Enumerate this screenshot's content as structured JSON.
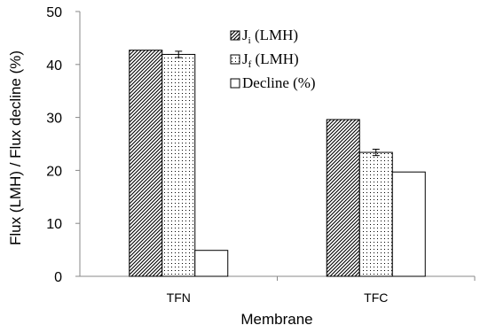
{
  "chart_data": {
    "type": "bar",
    "title": "",
    "xlabel": "Membrane",
    "ylabel": "Flux (LMH) / Flux decline (%)",
    "ylim": [
      0,
      50
    ],
    "yticks": [
      0,
      10,
      20,
      30,
      40,
      50
    ],
    "categories": [
      "TFN",
      "TFC"
    ],
    "series": [
      {
        "name_main": "J",
        "name_sub": "i",
        "name_rest": " (LMH)",
        "values": [
          42.7,
          29.6
        ],
        "errors": [
          0,
          0
        ],
        "pattern": "diagonal-hatch"
      },
      {
        "name_main": "J",
        "name_sub": "f",
        "name_rest": " (LMH)",
        "values": [
          41.9,
          23.4
        ],
        "errors": [
          0.6,
          0.6
        ],
        "pattern": "dots"
      },
      {
        "name_main": "Decline (%)",
        "name_sub": "",
        "name_rest": "",
        "values": [
          4.9,
          19.7
        ],
        "errors": [
          0,
          0
        ],
        "pattern": "empty"
      }
    ],
    "legend_position": "top-center",
    "grid": false
  }
}
